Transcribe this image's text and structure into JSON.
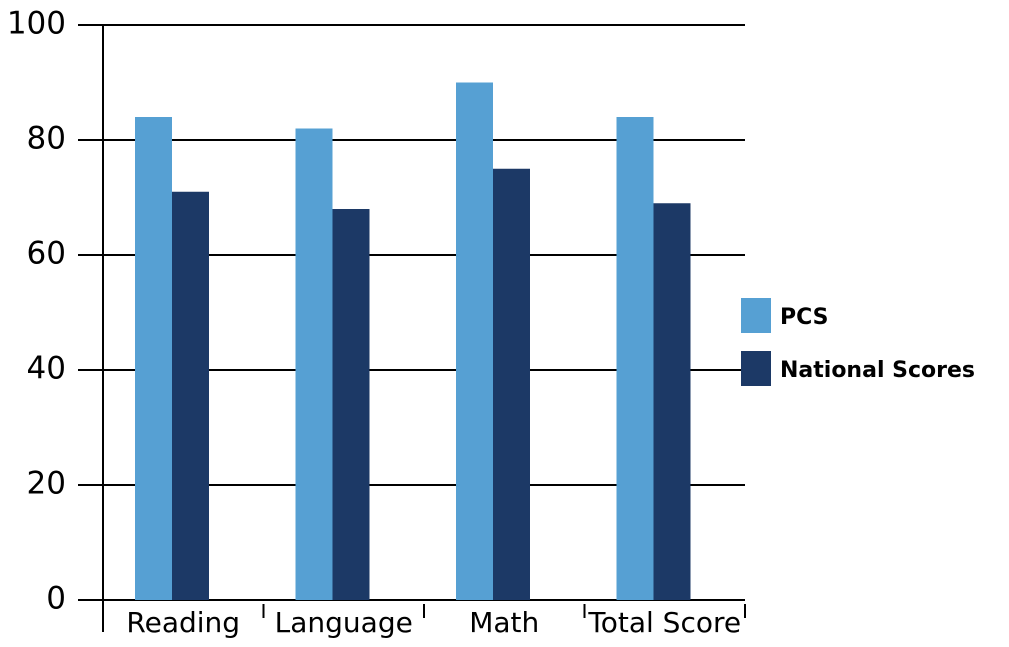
{
  "chart_data": {
    "type": "bar",
    "categories": [
      "Reading",
      "Language",
      "Math",
      "Total Score"
    ],
    "series": [
      {
        "name": "PCS",
        "color": "#56a0d3",
        "values": [
          84,
          82,
          90,
          84
        ]
      },
      {
        "name": "National Scores",
        "color": "#1c3966",
        "values": [
          71,
          68,
          75,
          69
        ]
      }
    ],
    "ylim": [
      0,
      100
    ],
    "yticks": [
      0,
      20,
      40,
      60,
      80,
      100
    ],
    "grid": true,
    "legend": "right"
  }
}
